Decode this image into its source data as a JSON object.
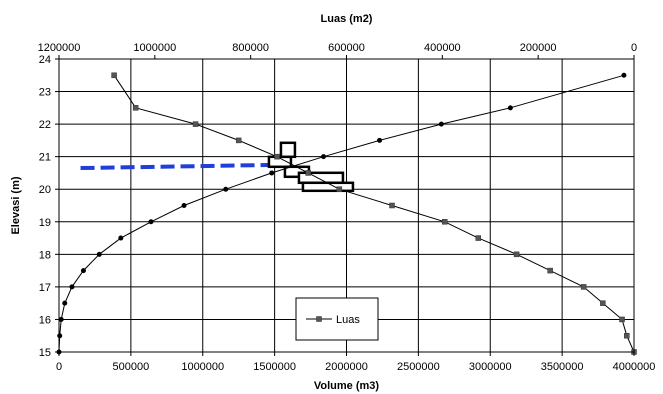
{
  "chart_data": {
    "type": "line",
    "top_axis_title": "Luas (m2)",
    "bottom_axis_title": "Volume (m3)",
    "y_axis_title": "Elevasi (m)",
    "x_bottom": {
      "min": 0,
      "max": 4000000,
      "step": 500000,
      "ticks": [
        "0",
        "500000",
        "1000000",
        "1500000",
        "2000000",
        "2500000",
        "3000000",
        "3500000",
        "4000000"
      ]
    },
    "x_top": {
      "min": 0,
      "max": 1200000,
      "step": 200000,
      "reversed": true,
      "ticks": [
        "1200000",
        "1000000",
        "800000",
        "600000",
        "400000",
        "200000",
        "0"
      ]
    },
    "y": {
      "min": 15,
      "max": 24,
      "step": 1,
      "ticks": [
        "15",
        "16",
        "17",
        "18",
        "19",
        "20",
        "21",
        "22",
        "23",
        "24"
      ]
    },
    "grid": true,
    "series": [
      {
        "name": "Luas",
        "axis": "top",
        "marker": "square",
        "color": "#000000",
        "points": [
          {
            "x": 0,
            "y": 15.0
          },
          {
            "x": 15000,
            "y": 15.5
          },
          {
            "x": 25000,
            "y": 16.0
          },
          {
            "x": 65000,
            "y": 16.5
          },
          {
            "x": 105000,
            "y": 17.0
          },
          {
            "x": 175000,
            "y": 17.5
          },
          {
            "x": 245000,
            "y": 18.0
          },
          {
            "x": 325000,
            "y": 18.5
          },
          {
            "x": 395000,
            "y": 19.0
          },
          {
            "x": 505000,
            "y": 19.5
          },
          {
            "x": 615000,
            "y": 20.0
          },
          {
            "x": 680000,
            "y": 20.5
          },
          {
            "x": 745000,
            "y": 21.0
          },
          {
            "x": 825000,
            "y": 21.5
          },
          {
            "x": 915000,
            "y": 22.0
          },
          {
            "x": 1040000,
            "y": 22.5
          },
          {
            "x": 1085000,
            "y": 23.5
          }
        ]
      },
      {
        "name": "",
        "axis": "bottom",
        "marker": "circle",
        "color": "#000000",
        "points": [
          {
            "x": 0,
            "y": 15.0
          },
          {
            "x": 5000,
            "y": 15.5
          },
          {
            "x": 15000,
            "y": 16.0
          },
          {
            "x": 40000,
            "y": 16.5
          },
          {
            "x": 90000,
            "y": 17.0
          },
          {
            "x": 170000,
            "y": 17.5
          },
          {
            "x": 280000,
            "y": 18.0
          },
          {
            "x": 430000,
            "y": 18.5
          },
          {
            "x": 640000,
            "y": 19.0
          },
          {
            "x": 870000,
            "y": 19.5
          },
          {
            "x": 1160000,
            "y": 20.0
          },
          {
            "x": 1480000,
            "y": 20.5
          },
          {
            "x": 1840000,
            "y": 21.0
          },
          {
            "x": 2230000,
            "y": 21.5
          },
          {
            "x": 2660000,
            "y": 22.0
          },
          {
            "x": 3140000,
            "y": 22.5
          },
          {
            "x": 3930000,
            "y": 23.5
          }
        ]
      }
    ],
    "annotation_line": {
      "color": "#1f3fd6",
      "dashed": true,
      "axis": "bottom",
      "from": {
        "x": 150000,
        "y": 20.65
      },
      "to": {
        "x": 1530000,
        "y": 20.75
      }
    },
    "legend": {
      "entries": [
        "Luas"
      ],
      "placement": "lower-middle"
    }
  }
}
